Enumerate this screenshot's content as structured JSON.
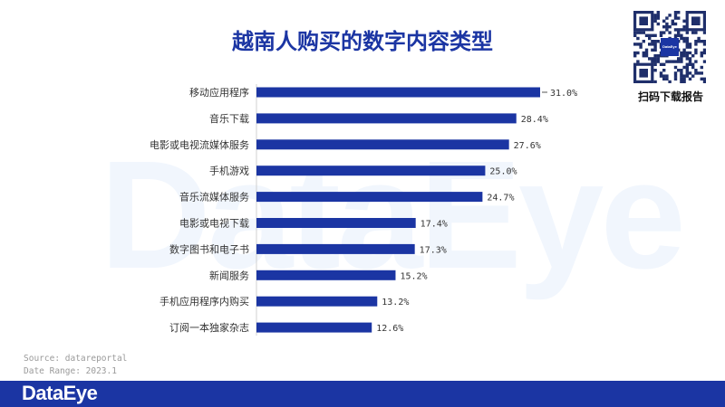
{
  "watermark": "DataEye",
  "qr_caption": "扫码下载报告",
  "qr_center": "DataEye",
  "source": "Source: datareportal",
  "date_range": "Date Range: 2023.1",
  "footer_logo": "DataEye",
  "colors": {
    "bar": "#1b35a3",
    "title": "#1b35a3",
    "footer": "#1b35a3"
  },
  "chart_data": {
    "type": "bar",
    "orientation": "horizontal",
    "title": "越南人购买的数字内容类型",
    "categories": [
      "移动应用程序",
      "音乐下载",
      "电影或电视流媒体服务",
      "手机游戏",
      "音乐流媒体服务",
      "电影或电视下载",
      "数字图书和电子书",
      "新闻服务",
      "手机应用程序内购买",
      "订阅一本独家杂志"
    ],
    "values": [
      31.0,
      28.4,
      27.6,
      25.0,
      24.7,
      17.4,
      17.3,
      15.2,
      13.2,
      12.6
    ],
    "value_labels": [
      "31.0%",
      "28.4%",
      "27.6%",
      "25.0%",
      "24.7%",
      "17.4%",
      "17.3%",
      "15.2%",
      "13.2%",
      "12.6%"
    ],
    "xlim": [
      0,
      31.0
    ],
    "grid": false,
    "legend": "none"
  }
}
